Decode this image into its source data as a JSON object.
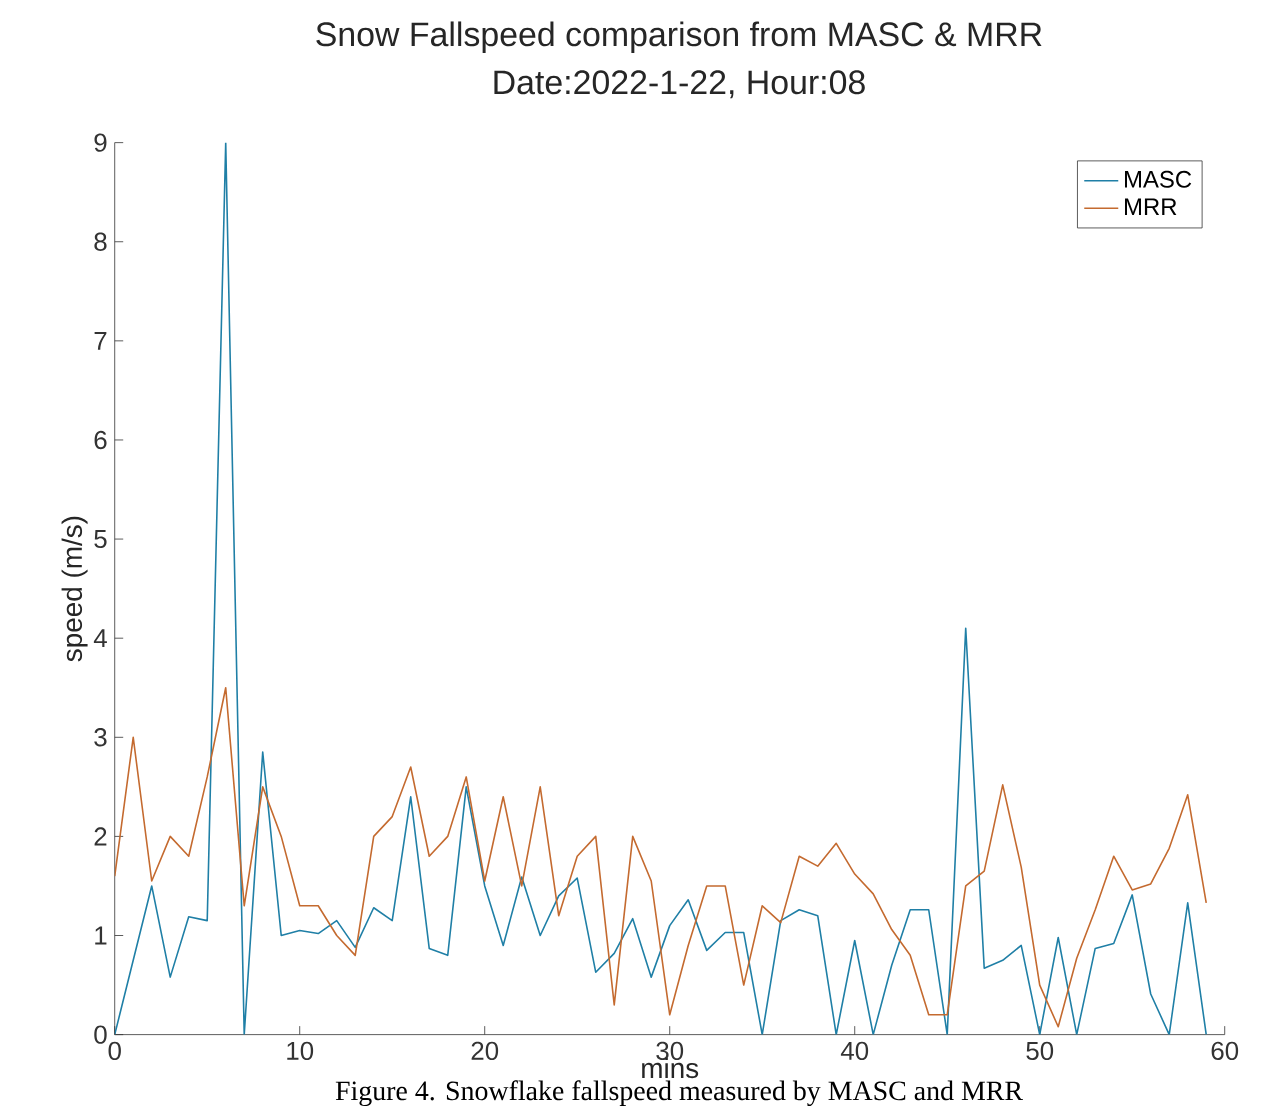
{
  "chart_data": {
    "type": "line",
    "title": "Snow Fallspeed comparison from MASC & MRR",
    "subtitle": "Date:2022-1-22, Hour:08",
    "xlabel": "mins",
    "ylabel": "speed (m/s)",
    "annotations": [
      "Figure 4. Snowflake fallspeed measured by MASC and MRR"
    ],
    "x": [
      0,
      1,
      2,
      3,
      4,
      5,
      6,
      7,
      8,
      9,
      10,
      11,
      12,
      13,
      14,
      15,
      16,
      17,
      18,
      19,
      20,
      21,
      22,
      23,
      24,
      25,
      26,
      27,
      28,
      29,
      30,
      31,
      32,
      33,
      34,
      35,
      36,
      37,
      38,
      39,
      40,
      41,
      42,
      43,
      44,
      45,
      46,
      47,
      48,
      49,
      50,
      51,
      52,
      53,
      54,
      55,
      56,
      57,
      58,
      59
    ],
    "series": [
      {
        "name": "MASC",
        "color": "#1f7fa6",
        "values": [
          0,
          0.75,
          1.5,
          0.58,
          1.19,
          1.15,
          9.0,
          0,
          2.85,
          1.0,
          1.05,
          1.02,
          1.15,
          0.88,
          1.28,
          1.15,
          2.4,
          0.87,
          0.8,
          2.5,
          1.5,
          0.9,
          1.59,
          1.0,
          1.4,
          1.58,
          0.63,
          0.82,
          1.17,
          0.58,
          1.1,
          1.36,
          0.85,
          1.03,
          1.03,
          0,
          1.15,
          1.26,
          1.2,
          0,
          0.95,
          0,
          0.7,
          1.26,
          1.26,
          0,
          4.1,
          0.67,
          0.75,
          0.9,
          0,
          0.98,
          0,
          0.87,
          0.92,
          1.41,
          0.41,
          0,
          1.33,
          0
        ]
      },
      {
        "name": "MRR",
        "color": "#c46a2f",
        "values": [
          1.6,
          3.0,
          1.55,
          2.0,
          1.8,
          2.6,
          3.5,
          1.3,
          2.5,
          2.0,
          1.3,
          1.3,
          1.0,
          0.8,
          2.0,
          2.2,
          2.7,
          1.8,
          2.0,
          2.6,
          1.55,
          2.4,
          1.5,
          2.5,
          1.2,
          1.8,
          2.0,
          0.3,
          2.0,
          1.55,
          0.2,
          0.9,
          1.5,
          1.5,
          0.5,
          1.3,
          1.13,
          1.8,
          1.7,
          1.93,
          1.62,
          1.42,
          1.06,
          0.8,
          0.2,
          0.2,
          1.5,
          1.65,
          2.52,
          1.69,
          0.5,
          0.08,
          0.77,
          1.26,
          1.8,
          1.46,
          1.52,
          1.88,
          2.42,
          1.33
        ]
      }
    ],
    "xlim": [
      0,
      60
    ],
    "ylim": [
      0,
      9
    ],
    "xticks": [
      0,
      10,
      20,
      30,
      40,
      50,
      60
    ],
    "yticks": [
      0,
      1,
      2,
      3,
      4,
      5,
      6,
      7,
      8,
      9
    ],
    "legend": "top right",
    "grid": false
  }
}
